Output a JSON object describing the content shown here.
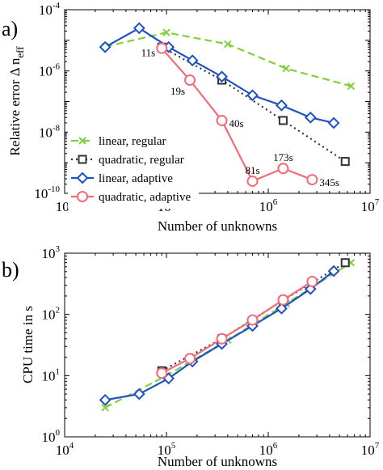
{
  "colors": {
    "linear_regular": "#7fd13b",
    "quadratic_regular": "#333333",
    "linear_adaptive": "#1c52c4",
    "quadratic_adaptive": "#f26b78"
  },
  "chart_data": [
    {
      "panel_label": "a)",
      "type": "line",
      "xscale": "log",
      "yscale": "log",
      "xlim": [
        10000,
        10000000
      ],
      "ylim": [
        1e-10,
        0.0001
      ],
      "xlabel": "Number of unknowns",
      "ylabel": "Relative error Δ n",
      "ylabel_sub": "eff",
      "xticks": [
        {
          "value": 10000,
          "base": "10",
          "exp": "4"
        },
        {
          "value": 100000,
          "base": "10",
          "exp": "5"
        },
        {
          "value": 1000000,
          "base": "10",
          "exp": "6"
        },
        {
          "value": 10000000,
          "base": "10",
          "exp": "7"
        }
      ],
      "yticks": [
        {
          "value": 1e-10,
          "base": "10",
          "exp": "-10"
        },
        {
          "value": 1e-08,
          "base": "10",
          "exp": "-8"
        },
        {
          "value": 1e-06,
          "base": "10",
          "exp": "-6"
        },
        {
          "value": 0.0001,
          "base": "10",
          "exp": "-4"
        }
      ],
      "legend": "bottom-left",
      "series": [
        {
          "name": "linear, regular",
          "key": "linear_regular",
          "marker": "x",
          "dash": "dash",
          "x": [
            25000,
            100000,
            400000,
            1500000,
            6500000
          ],
          "y": [
            6.2e-06,
            1.8e-05,
            7.5e-06,
            1.2e-06,
            3.2e-07
          ]
        },
        {
          "name": "quadratic, regular",
          "key": "quadratic_regular",
          "marker": "square",
          "dash": "dot",
          "x": [
            90000,
            350000,
            1400000,
            5700000
          ],
          "y": [
            6e-06,
            5e-07,
            2.4e-08,
            1.1e-09
          ]
        },
        {
          "name": "linear, adaptive",
          "key": "linear_adaptive",
          "marker": "diamond",
          "dash": "solid",
          "x": [
            25000,
            54000,
            105000,
            180000,
            350000,
            700000,
            1350000,
            2600000,
            4400000
          ],
          "y": [
            6e-06,
            2.5e-05,
            6e-06,
            2.2e-06,
            6.5e-07,
            1.6e-07,
            7.5e-08,
            3e-08,
            2e-08
          ]
        },
        {
          "name": "quadratic, adaptive",
          "key": "quadratic_adaptive",
          "marker": "circle",
          "dash": "solid",
          "x": [
            90000,
            170000,
            350000,
            700000,
            1400000,
            2700000
          ],
          "y": [
            5.5e-06,
            5e-07,
            2.4e-08,
            2.5e-10,
            6.5e-10,
            2.8e-10
          ]
        }
      ],
      "annotations": [
        {
          "text": "11s",
          "x": 90000,
          "y": 5.5e-06,
          "pos": "left"
        },
        {
          "text": "19s",
          "x": 170000,
          "y": 5e-07,
          "pos": "below-left"
        },
        {
          "text": "40s",
          "x": 350000,
          "y": 2.4e-08,
          "pos": "right"
        },
        {
          "text": "81s",
          "x": 700000,
          "y": 2.5e-10,
          "pos": "above"
        },
        {
          "text": "173s",
          "x": 1400000,
          "y": 6.5e-10,
          "pos": "above"
        },
        {
          "text": "345s",
          "x": 2700000,
          "y": 2.8e-10,
          "pos": "right"
        }
      ]
    },
    {
      "panel_label": "b)",
      "type": "line",
      "xscale": "log",
      "yscale": "log",
      "xlim": [
        10000,
        10000000
      ],
      "ylim": [
        1,
        1000
      ],
      "xlabel": "Number of unknowns",
      "ylabel": "CPU time in s",
      "xticks": [
        {
          "value": 10000,
          "base": "10",
          "exp": "4"
        },
        {
          "value": 100000,
          "base": "10",
          "exp": "5"
        },
        {
          "value": 1000000,
          "base": "10",
          "exp": "6"
        },
        {
          "value": 10000000,
          "base": "10",
          "exp": "7"
        }
      ],
      "yticks": [
        {
          "value": 1,
          "base": "10",
          "exp": "0"
        },
        {
          "value": 10,
          "base": "10",
          "exp": "1"
        },
        {
          "value": 100,
          "base": "10",
          "exp": "2"
        },
        {
          "value": 1000,
          "base": "10",
          "exp": "3"
        }
      ],
      "series": [
        {
          "key": "linear_regular",
          "marker": "x",
          "dash": "dash",
          "x": [
            25000,
            100000,
            400000,
            1500000,
            6500000
          ],
          "y": [
            3.0,
            10,
            38,
            150,
            700
          ]
        },
        {
          "key": "quadratic_regular",
          "marker": "square",
          "dash": "dot",
          "x": [
            90000,
            350000,
            1400000,
            5700000
          ],
          "y": [
            12,
            40,
            170,
            700
          ]
        },
        {
          "key": "linear_adaptive",
          "marker": "diamond",
          "dash": "solid",
          "x": [
            25000,
            54000,
            105000,
            180000,
            350000,
            700000,
            1350000,
            2600000,
            4400000
          ],
          "y": [
            4.0,
            5.0,
            9.0,
            17,
            33,
            65,
            125,
            260,
            510
          ]
        },
        {
          "key": "quadratic_adaptive",
          "marker": "circle",
          "dash": "solid",
          "x": [
            90000,
            170000,
            350000,
            700000,
            1400000,
            2700000
          ],
          "y": [
            11,
            19,
            40,
            81,
            173,
            345
          ]
        }
      ]
    }
  ]
}
